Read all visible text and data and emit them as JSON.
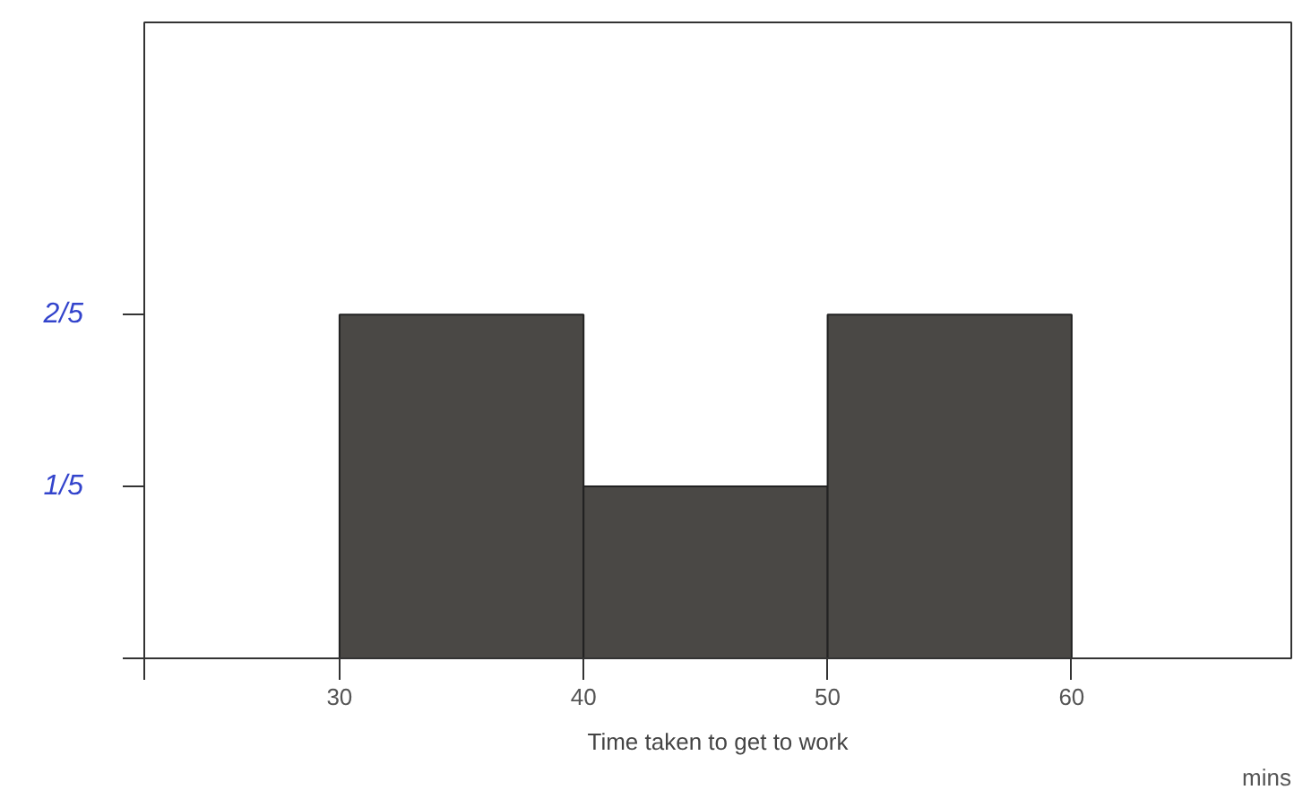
{
  "chart_data": {
    "type": "histogram",
    "xlabel": "Time taken to get to work",
    "annotations": [
      "mins"
    ],
    "bins": [
      30,
      40,
      50,
      60
    ],
    "values": [
      0.4,
      0.2,
      0.4
    ],
    "color": "#4a4845",
    "xlim": [
      22,
      69
    ],
    "xticks": [
      {
        "value": 22,
        "label": null
      },
      30,
      40,
      50,
      60
    ],
    "ylim": [
      0,
      0.74
    ],
    "yticks": [
      {
        "value": 0,
        "label": null
      },
      {
        "value": 0.2,
        "label": "1/5"
      },
      {
        "value": 0.4,
        "label": "2/5"
      }
    ],
    "grid": false
  }
}
